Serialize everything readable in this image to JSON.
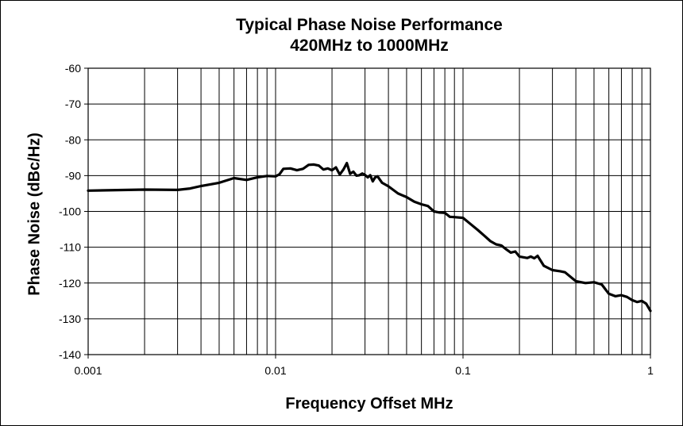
{
  "chart_data": {
    "type": "line",
    "title": "Typical Phase Noise Performance",
    "subtitle": "420MHz to 1000MHz",
    "xlabel": "Frequency Offset MHz",
    "ylabel": "Phase Noise (dBc/Hz)",
    "x_scale": "log",
    "xlim": [
      0.001,
      1
    ],
    "ylim": [
      -140,
      -60
    ],
    "x_tick_labels": [
      "0.001",
      "0.01",
      "0.1",
      "1"
    ],
    "x_tick_values": [
      0.001,
      0.01,
      0.1,
      1
    ],
    "y_tick_labels": [
      "-60",
      "-70",
      "-80",
      "-90",
      "-100",
      "-110",
      "-120",
      "-130",
      "-140"
    ],
    "y_tick_values": [
      -60,
      -70,
      -80,
      -90,
      -100,
      -110,
      -120,
      -130,
      -140
    ],
    "grid": true,
    "legend": "none",
    "line_color": "#000000",
    "series": [
      {
        "x": [
          0.001,
          0.002,
          0.003,
          0.0035,
          0.004,
          0.005,
          0.006,
          0.007,
          0.008,
          0.009,
          0.01,
          0.0105,
          0.011,
          0.012,
          0.013,
          0.014,
          0.015,
          0.016,
          0.017,
          0.018,
          0.019,
          0.02,
          0.021,
          0.022,
          0.023,
          0.024,
          0.025,
          0.026,
          0.027,
          0.028,
          0.029,
          0.03,
          0.031,
          0.032,
          0.033,
          0.034,
          0.035,
          0.037,
          0.04,
          0.045,
          0.05,
          0.055,
          0.06,
          0.065,
          0.07,
          0.075,
          0.08,
          0.085,
          0.09,
          0.1,
          0.11,
          0.12,
          0.13,
          0.14,
          0.15,
          0.16,
          0.17,
          0.18,
          0.19,
          0.2,
          0.22,
          0.23,
          0.24,
          0.25,
          0.27,
          0.3,
          0.33,
          0.35,
          0.4,
          0.45,
          0.5,
          0.55,
          0.6,
          0.65,
          0.7,
          0.75,
          0.8,
          0.85,
          0.9,
          0.95,
          1.0
        ],
        "y": [
          -94.2,
          -93.9,
          -94.0,
          -93.6,
          -92.9,
          -92.0,
          -90.7,
          -91.2,
          -90.5,
          -90.1,
          -90.2,
          -89.6,
          -88.1,
          -88.0,
          -88.5,
          -88.1,
          -87.0,
          -86.9,
          -87.2,
          -88.3,
          -88.0,
          -88.5,
          -87.7,
          -89.7,
          -88.3,
          -86.5,
          -89.5,
          -88.9,
          -90.0,
          -89.9,
          -89.4,
          -89.8,
          -90.5,
          -89.9,
          -91.6,
          -90.5,
          -90.2,
          -92.0,
          -93.0,
          -95.0,
          -96.0,
          -97.3,
          -98.0,
          -98.5,
          -100.0,
          -100.3,
          -100.4,
          -101.5,
          -101.6,
          -101.8,
          -103.6,
          -105.2,
          -106.8,
          -108.3,
          -109.2,
          -109.5,
          -110.6,
          -111.5,
          -111.2,
          -112.6,
          -113.0,
          -112.6,
          -113.1,
          -112.4,
          -115.2,
          -116.4,
          -116.7,
          -117.0,
          -119.5,
          -120.0,
          -119.8,
          -120.4,
          -123.0,
          -123.7,
          -123.4,
          -123.9,
          -124.8,
          -125.3,
          -125.0,
          -125.8,
          -127.8
        ]
      }
    ]
  }
}
